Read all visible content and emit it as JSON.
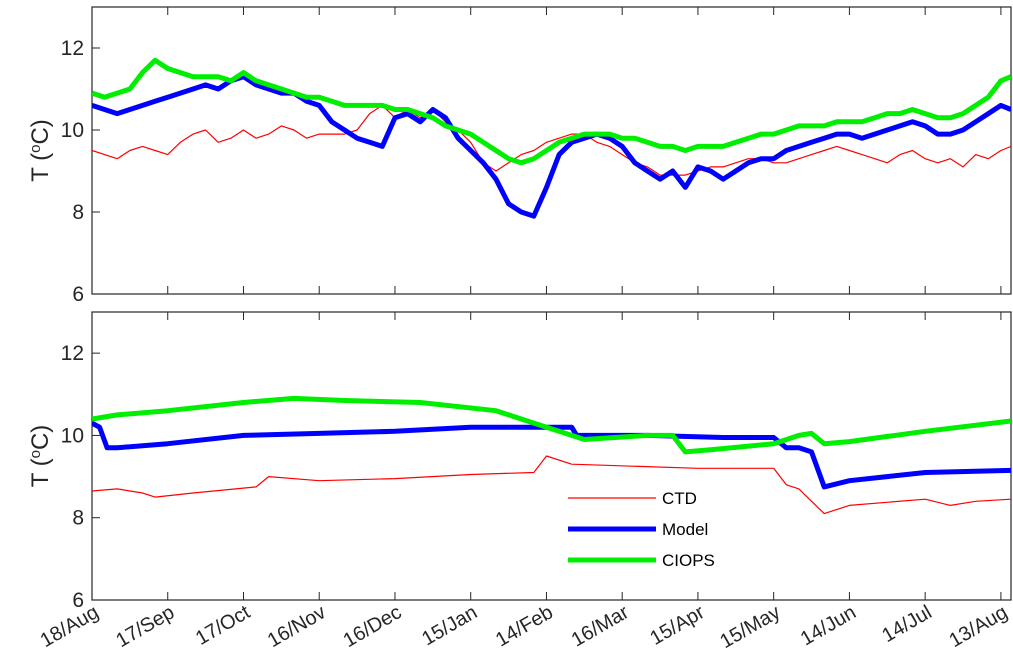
{
  "chart_data": [
    {
      "type": "line",
      "ylabel": "T (°C)",
      "ylabel_parts": {
        "prefix": "T (",
        "superscript": "o",
        "suffix": "C)"
      },
      "ylim": [
        6,
        13
      ],
      "yticks": [
        6,
        8,
        10,
        12
      ],
      "xlim": [
        0,
        364
      ],
      "grid": false,
      "series": [
        {
          "name": "CTD",
          "color": "#ff0000",
          "x": [
            0,
            5,
            10,
            15,
            20,
            25,
            30,
            35,
            40,
            45,
            50,
            55,
            60,
            65,
            70,
            75,
            80,
            85,
            90,
            95,
            100,
            105,
            110,
            115,
            120,
            125,
            130,
            135,
            140,
            145,
            150,
            155,
            160,
            165,
            170,
            175,
            180,
            185,
            190,
            195,
            200,
            205,
            210,
            215,
            220,
            225,
            230,
            235,
            240,
            245,
            250,
            255,
            260,
            265,
            270,
            275,
            280,
            285,
            290,
            295,
            300,
            305,
            310,
            315,
            320,
            325,
            330,
            335,
            340,
            345,
            350,
            355,
            360,
            364
          ],
          "y": [
            9.5,
            9.4,
            9.3,
            9.5,
            9.6,
            9.5,
            9.4,
            9.7,
            9.9,
            10.0,
            9.7,
            9.8,
            10.0,
            9.8,
            9.9,
            10.1,
            10.0,
            9.8,
            9.9,
            9.9,
            9.9,
            10.0,
            10.4,
            10.6,
            10.3,
            10.5,
            10.3,
            10.5,
            10.2,
            10.0,
            9.7,
            9.2,
            9.0,
            9.2,
            9.4,
            9.5,
            9.7,
            9.8,
            9.9,
            9.9,
            9.7,
            9.6,
            9.4,
            9.2,
            9.1,
            8.9,
            8.9,
            8.9,
            9.0,
            9.1,
            9.1,
            9.2,
            9.3,
            9.3,
            9.2,
            9.2,
            9.3,
            9.4,
            9.5,
            9.6,
            9.5,
            9.4,
            9.3,
            9.2,
            9.4,
            9.5,
            9.3,
            9.2,
            9.3,
            9.1,
            9.4,
            9.3,
            9.5,
            9.6
          ]
        },
        {
          "name": "Model",
          "color": "#0000ff",
          "x": [
            0,
            5,
            10,
            15,
            20,
            25,
            30,
            35,
            40,
            45,
            50,
            55,
            60,
            65,
            70,
            75,
            80,
            85,
            90,
            95,
            100,
            105,
            110,
            115,
            120,
            125,
            130,
            135,
            140,
            145,
            150,
            155,
            160,
            165,
            170,
            175,
            180,
            185,
            190,
            195,
            200,
            205,
            210,
            215,
            220,
            225,
            230,
            235,
            240,
            245,
            250,
            255,
            260,
            265,
            270,
            275,
            280,
            285,
            290,
            295,
            300,
            305,
            310,
            315,
            320,
            325,
            330,
            335,
            340,
            345,
            350,
            355,
            360,
            364
          ],
          "y": [
            10.6,
            10.5,
            10.4,
            10.5,
            10.6,
            10.7,
            10.8,
            10.9,
            11.0,
            11.1,
            11.0,
            11.2,
            11.3,
            11.1,
            11.0,
            10.9,
            10.9,
            10.7,
            10.6,
            10.2,
            10.0,
            9.8,
            9.7,
            9.6,
            10.3,
            10.4,
            10.2,
            10.5,
            10.3,
            9.8,
            9.5,
            9.2,
            8.8,
            8.2,
            8.0,
            7.9,
            8.6,
            9.4,
            9.7,
            9.8,
            9.9,
            9.8,
            9.6,
            9.2,
            9.0,
            8.8,
            9.0,
            8.6,
            9.1,
            9.0,
            8.8,
            9.0,
            9.2,
            9.3,
            9.3,
            9.5,
            9.6,
            9.7,
            9.8,
            9.9,
            9.9,
            9.8,
            9.9,
            10.0,
            10.1,
            10.2,
            10.1,
            9.9,
            9.9,
            10.0,
            10.2,
            10.4,
            10.6,
            10.5
          ]
        },
        {
          "name": "CIOPS",
          "color": "#00ee00",
          "x": [
            0,
            5,
            10,
            15,
            20,
            25,
            30,
            35,
            40,
            45,
            50,
            55,
            60,
            65,
            70,
            75,
            80,
            85,
            90,
            95,
            100,
            105,
            110,
            115,
            120,
            125,
            130,
            135,
            140,
            145,
            150,
            155,
            160,
            165,
            170,
            175,
            180,
            185,
            190,
            195,
            200,
            205,
            210,
            215,
            220,
            225,
            230,
            235,
            240,
            245,
            250,
            255,
            260,
            265,
            270,
            275,
            280,
            285,
            290,
            295,
            300,
            305,
            310,
            315,
            320,
            325,
            330,
            335,
            340,
            345,
            350,
            355,
            360,
            364
          ],
          "y": [
            10.9,
            10.8,
            10.9,
            11.0,
            11.4,
            11.7,
            11.5,
            11.4,
            11.3,
            11.3,
            11.3,
            11.2,
            11.4,
            11.2,
            11.1,
            11.0,
            10.9,
            10.8,
            10.8,
            10.7,
            10.6,
            10.6,
            10.6,
            10.6,
            10.5,
            10.5,
            10.4,
            10.3,
            10.1,
            10.0,
            9.9,
            9.7,
            9.5,
            9.3,
            9.2,
            9.3,
            9.5,
            9.7,
            9.8,
            9.9,
            9.9,
            9.9,
            9.8,
            9.8,
            9.7,
            9.6,
            9.6,
            9.5,
            9.6,
            9.6,
            9.6,
            9.7,
            9.8,
            9.9,
            9.9,
            10.0,
            10.1,
            10.1,
            10.1,
            10.2,
            10.2,
            10.2,
            10.3,
            10.4,
            10.4,
            10.5,
            10.4,
            10.3,
            10.3,
            10.4,
            10.6,
            10.8,
            11.2,
            11.3
          ]
        }
      ]
    },
    {
      "type": "line",
      "ylabel": "T (°C)",
      "ylabel_parts": {
        "prefix": "T (",
        "superscript": "o",
        "suffix": "C)"
      },
      "ylim": [
        6,
        13
      ],
      "yticks": [
        6,
        8,
        10,
        12
      ],
      "xlim": [
        0,
        364
      ],
      "grid": false,
      "x_tick_values": [
        0,
        30,
        60,
        90,
        120,
        150,
        180,
        210,
        240,
        270,
        300,
        330,
        360
      ],
      "x_tick_labels": [
        "18/Aug",
        "17/Sep",
        "17/Oct",
        "16/Nov",
        "16/Dec",
        "15/Jan",
        "14/Feb",
        "16/Mar",
        "15/Apr",
        "15/May",
        "14/Jun",
        "14/Jul",
        "13/Aug"
      ],
      "legend": {
        "placement": "lower-center",
        "entries": [
          "CTD",
          "Model",
          "CIOPS"
        ]
      },
      "series": [
        {
          "name": "CTD",
          "color": "#ff0000",
          "x": [
            0,
            10,
            20,
            25,
            40,
            65,
            70,
            90,
            120,
            150,
            175,
            180,
            190,
            240,
            270,
            275,
            280,
            290,
            300,
            330,
            340,
            350,
            364
          ],
          "y": [
            8.65,
            8.7,
            8.6,
            8.5,
            8.6,
            8.75,
            9.0,
            8.9,
            8.95,
            9.05,
            9.1,
            9.5,
            9.3,
            9.2,
            9.2,
            8.8,
            8.7,
            8.1,
            8.3,
            8.45,
            8.3,
            8.4,
            8.45
          ]
        },
        {
          "name": "Model",
          "color": "#0000ff",
          "x": [
            0,
            3,
            6,
            10,
            30,
            60,
            90,
            120,
            150,
            175,
            180,
            190,
            192,
            220,
            250,
            270,
            275,
            280,
            285,
            290,
            300,
            330,
            364
          ],
          "y": [
            10.3,
            10.2,
            9.7,
            9.7,
            9.8,
            10.0,
            10.05,
            10.1,
            10.2,
            10.2,
            10.2,
            10.2,
            10.0,
            10.0,
            9.95,
            9.95,
            9.7,
            9.7,
            9.6,
            8.75,
            8.9,
            9.1,
            9.15
          ]
        },
        {
          "name": "CIOPS",
          "color": "#00ee00",
          "x": [
            0,
            10,
            30,
            60,
            80,
            100,
            130,
            160,
            175,
            185,
            195,
            220,
            230,
            235,
            245,
            270,
            280,
            285,
            290,
            300,
            330,
            364
          ],
          "y": [
            10.4,
            10.5,
            10.6,
            10.8,
            10.9,
            10.85,
            10.8,
            10.6,
            10.3,
            10.1,
            9.9,
            10.0,
            10.0,
            9.6,
            9.65,
            9.8,
            10.0,
            10.05,
            9.8,
            9.85,
            10.1,
            10.35
          ]
        }
      ]
    }
  ]
}
